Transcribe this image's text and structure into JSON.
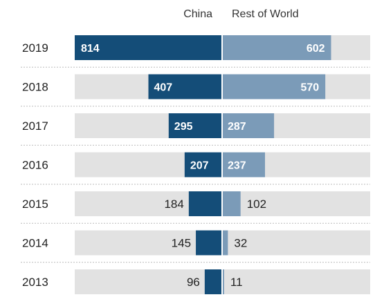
{
  "chart_data": {
    "type": "bar",
    "orientation": "horizontal-diverging",
    "categories": [
      "2019",
      "2018",
      "2017",
      "2016",
      "2015",
      "2014",
      "2013"
    ],
    "series": [
      {
        "name": "China",
        "values": [
          814,
          407,
          295,
          207,
          184,
          145,
          96
        ]
      },
      {
        "name": "Rest of World",
        "values": [
          602,
          570,
          287,
          237,
          102,
          32,
          11
        ]
      }
    ],
    "data_labels": true,
    "grid": false,
    "legend_placement": "top-center",
    "xlim": [
      -814,
      814
    ]
  },
  "colors": {
    "china": "#144d78",
    "rest_of_world": "#7b9bb8",
    "track": "#e2e2e2",
    "label_dark": "#222222",
    "label_light": "#ffffff",
    "separator": "#bbbbbb"
  }
}
